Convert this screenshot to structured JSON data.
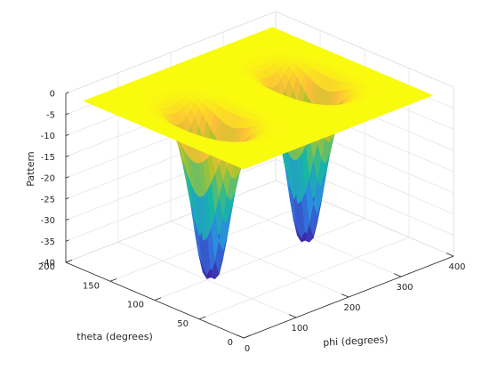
{
  "chart_data": {
    "type": "surface",
    "title": "",
    "xlabel": "phi (degrees)",
    "ylabel": "theta (degrees)",
    "zlabel": "Pattern",
    "xlim": [
      0,
      400
    ],
    "ylim": [
      0,
      200
    ],
    "zlim": [
      -40,
      0
    ],
    "x_ticks": [
      "0",
      "100",
      "200",
      "300",
      "400"
    ],
    "y_ticks": [
      "0",
      "50",
      "100",
      "150",
      "200"
    ],
    "z_ticks": [
      "0",
      "-5",
      "-10",
      "-15",
      "-20",
      "-25",
      "-30",
      "-35",
      "-40"
    ],
    "grid": true,
    "colormap": "parula",
    "colors": {
      "high": "#f9fb0e",
      "mid": "#fdbf3a",
      "low": "#3e6ae8"
    },
    "surface": {
      "phi_range": [
        0,
        360
      ],
      "theta_range": [
        0,
        180
      ],
      "max_value": 0,
      "min_value": -38,
      "nulls": [
        {
          "phi": 0,
          "theta": 90,
          "value": -38
        },
        {
          "phi": 180,
          "theta": 90,
          "value": -38
        },
        {
          "phi": 360,
          "theta": 90,
          "value": -38
        }
      ],
      "local_dips": [
        {
          "phi": 90,
          "theta": 90,
          "value": -4
        },
        {
          "phi": 270,
          "theta": 90,
          "value": -4
        }
      ]
    }
  }
}
